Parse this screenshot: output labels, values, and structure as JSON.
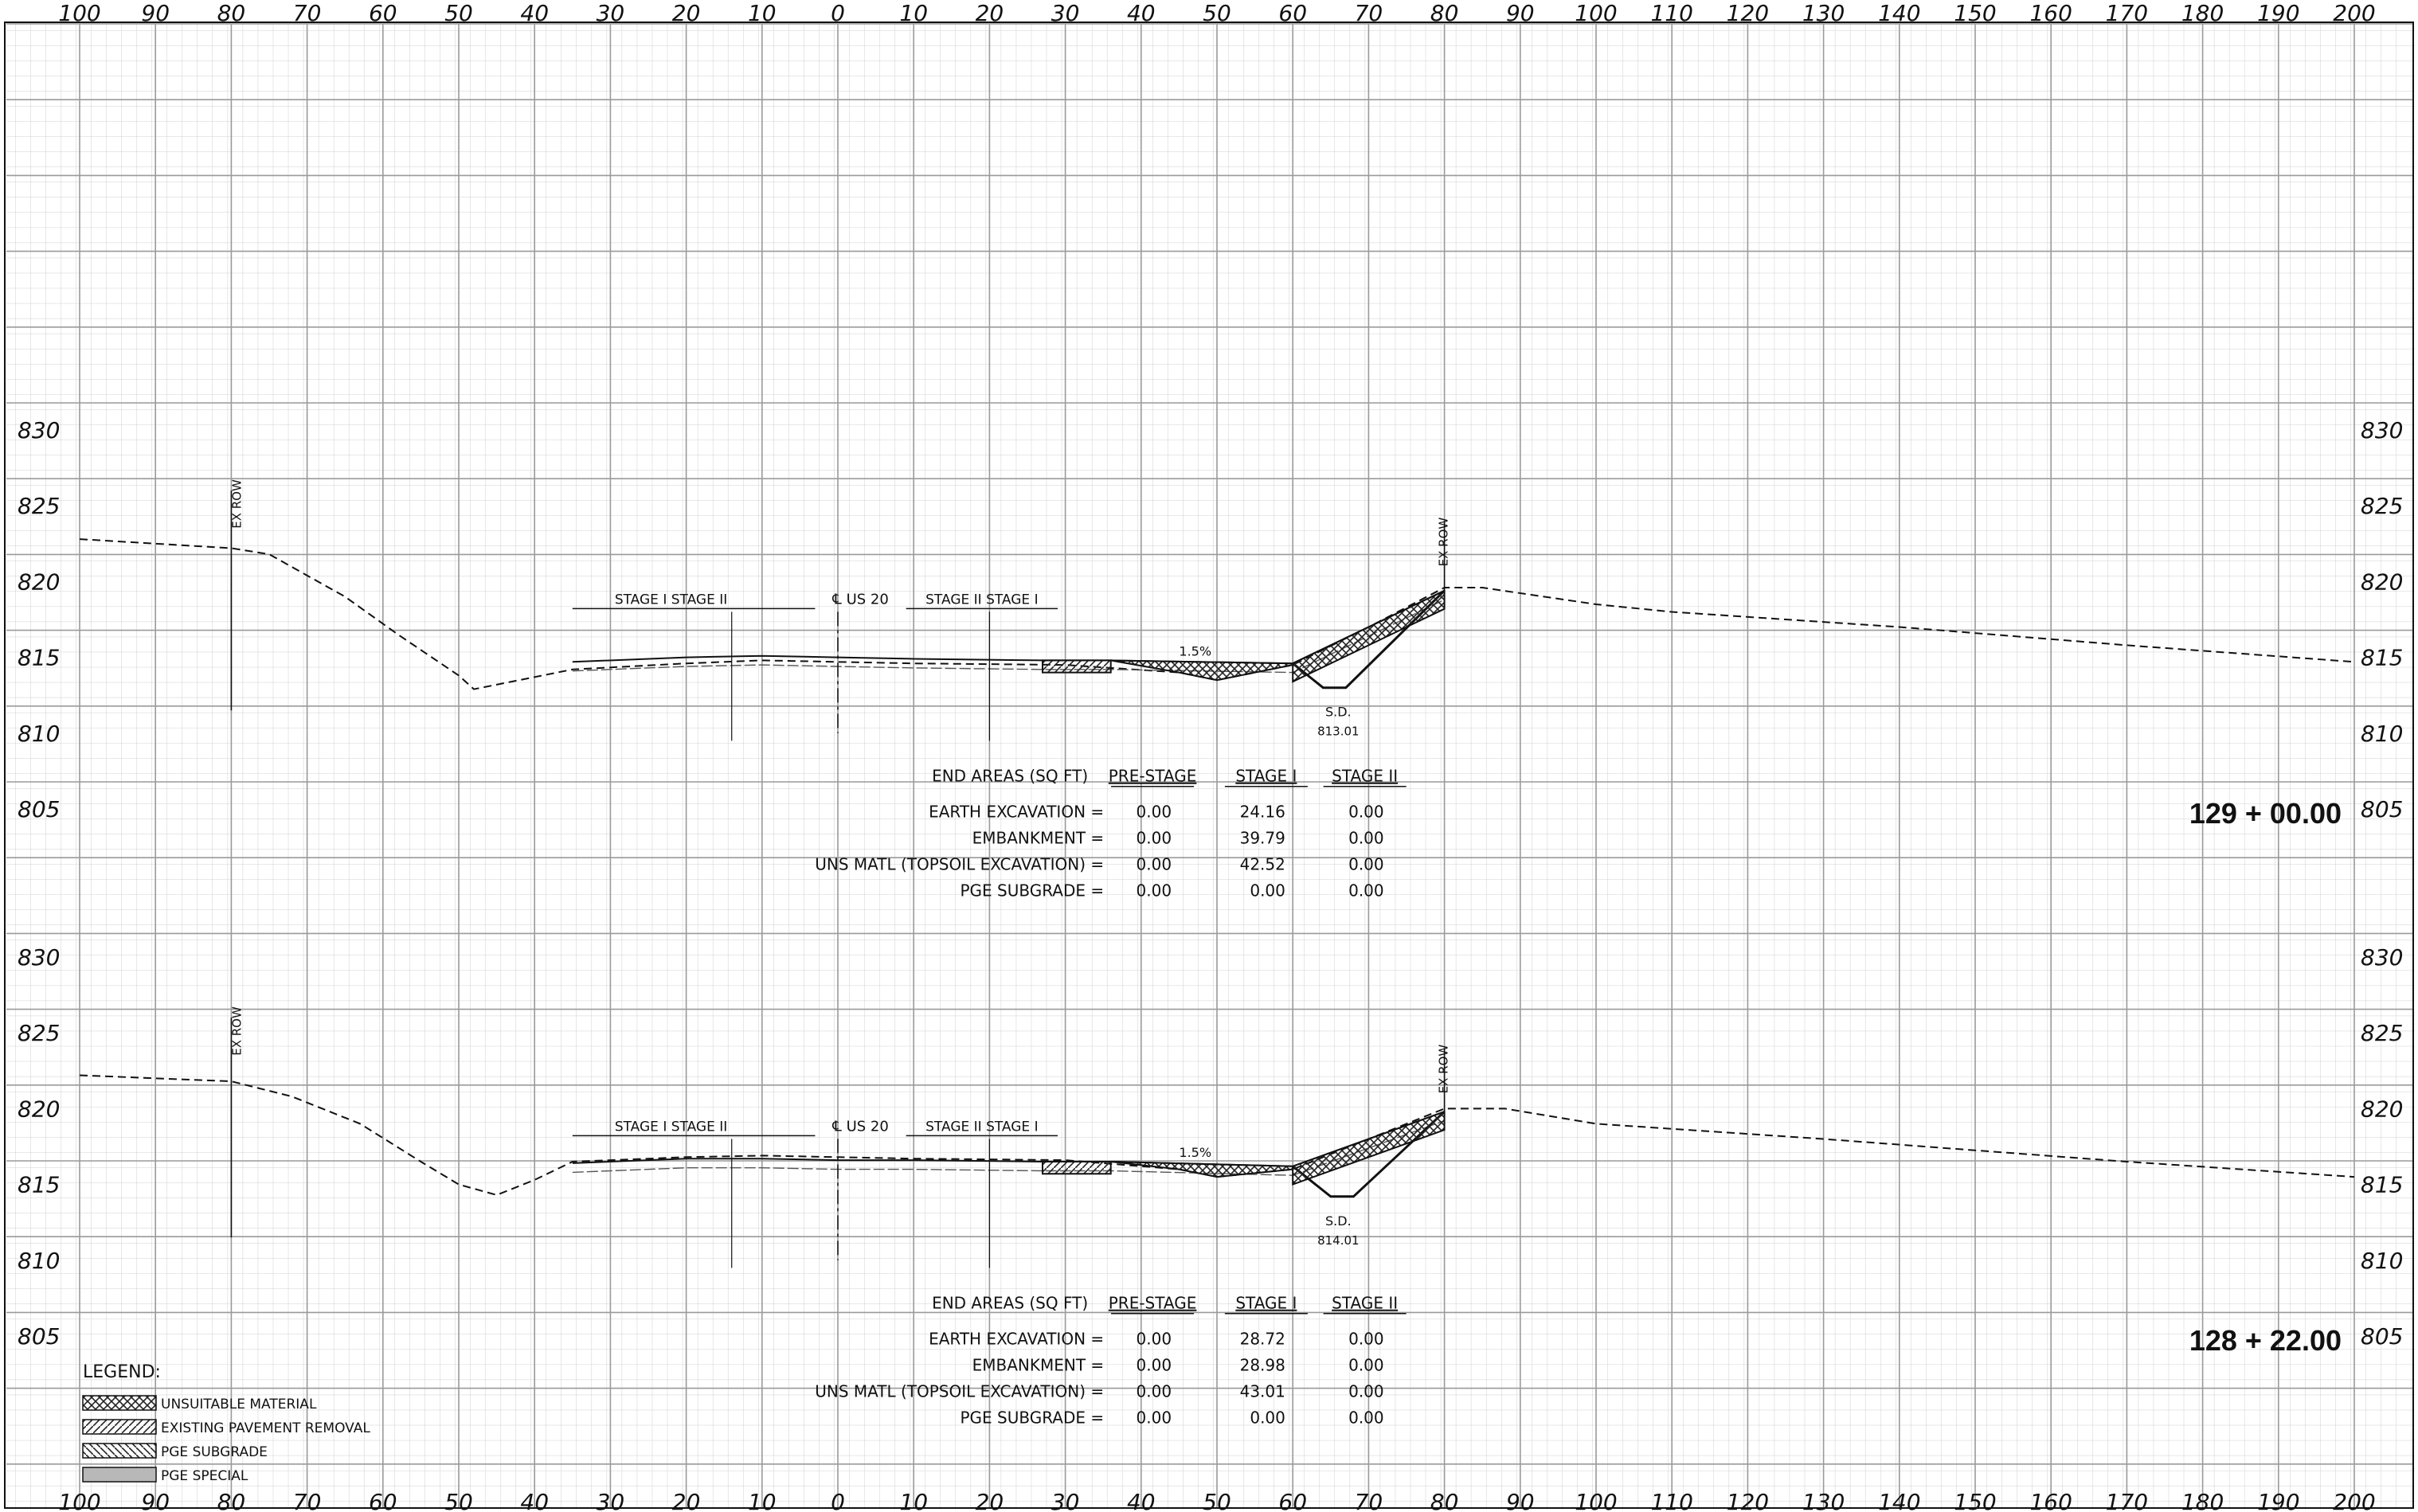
{
  "axis": {
    "offset_labels": [
      "100",
      "90",
      "80",
      "70",
      "60",
      "50",
      "40",
      "30",
      "20",
      "10",
      "0",
      "10",
      "20",
      "30",
      "40",
      "50",
      "60",
      "70",
      "80",
      "90",
      "100",
      "110",
      "120",
      "130",
      "140",
      "150",
      "160",
      "170",
      "180",
      "190",
      "200"
    ],
    "offset_values": [
      -100,
      -90,
      -80,
      -70,
      -60,
      -50,
      -40,
      -30,
      -20,
      -10,
      0,
      10,
      20,
      30,
      40,
      50,
      60,
      70,
      80,
      90,
      100,
      110,
      120,
      130,
      140,
      150,
      160,
      170,
      180,
      190,
      200
    ],
    "elevation_labels": [
      "830",
      "825",
      "820",
      "815",
      "810",
      "805"
    ]
  },
  "sections": [
    {
      "station": "129 + 00.00",
      "labels": {
        "ex_row_left": "EX ROW",
        "ex_row_right": "EX ROW",
        "stage_left": "STAGE I  STAGE II",
        "centerline": "℄ US 20",
        "stage_right": "STAGE II  STAGE I",
        "slope": "1.5%",
        "sd": "S.D.",
        "sd_elev": "813.01"
      },
      "existing_ground": [
        [
          -100,
          822.8
        ],
        [
          -80,
          822.2
        ],
        [
          -75,
          821.8
        ],
        [
          -65,
          819.0
        ],
        [
          -58,
          816.5
        ],
        [
          -50,
          813.8
        ],
        [
          -48,
          812.9
        ],
        [
          -35,
          814.2
        ],
        [
          -20,
          814.6
        ],
        [
          -10,
          814.8
        ],
        [
          0,
          814.7
        ],
        [
          10,
          814.6
        ],
        [
          30,
          814.5
        ],
        [
          45,
          814.0
        ],
        [
          50,
          813.5
        ],
        [
          60,
          814.5
        ],
        [
          70,
          817.0
        ],
        [
          80,
          819.6
        ],
        [
          85,
          819.6
        ],
        [
          100,
          818.5
        ],
        [
          110,
          818.0
        ],
        [
          140,
          817.0
        ],
        [
          170,
          815.8
        ],
        [
          200,
          814.7
        ]
      ],
      "proposed_surface": [
        [
          -35,
          814.7
        ],
        [
          -20,
          815.0
        ],
        [
          -10,
          815.1
        ],
        [
          0,
          815.0
        ],
        [
          10,
          814.9
        ],
        [
          27,
          814.8
        ],
        [
          36,
          814.8
        ],
        [
          60,
          814.6
        ],
        [
          80,
          819.4
        ]
      ],
      "ditch_bottom": [
        [
          60,
          814.6
        ],
        [
          64,
          813.0
        ],
        [
          67,
          813.0
        ],
        [
          80,
          819.4
        ]
      ],
      "end_areas": {
        "header": [
          "END AREAS (SQ FT)",
          "PRE-STAGE",
          "STAGE I",
          "STAGE II"
        ],
        "rows": [
          [
            "EARTH EXCAVATION =",
            "0.00",
            "24.16",
            "0.00"
          ],
          [
            "EMBANKMENT =",
            "0.00",
            "39.79",
            "0.00"
          ],
          [
            "UNS MATL (TOPSOIL EXCAVATION) =",
            "0.00",
            "42.52",
            "0.00"
          ],
          [
            "PGE SUBGRADE =",
            "0.00",
            "0.00",
            "0.00"
          ]
        ]
      }
    },
    {
      "station": "128 + 22.00",
      "labels": {
        "ex_row_left": "EX ROW",
        "ex_row_right": "EX ROW",
        "stage_left": "STAGE I  STAGE II",
        "centerline": "℄ US 20",
        "stage_right": "STAGE II  STAGE I",
        "slope": "1.5%",
        "sd": "S.D.",
        "sd_elev": "814.01"
      },
      "existing_ground": [
        [
          -100,
          822.2
        ],
        [
          -80,
          821.8
        ],
        [
          -72,
          820.8
        ],
        [
          -63,
          819.0
        ],
        [
          -55,
          816.5
        ],
        [
          -50,
          815.0
        ],
        [
          -45,
          814.3
        ],
        [
          -40,
          815.3
        ],
        [
          -35,
          816.5
        ],
        [
          -20,
          816.8
        ],
        [
          -10,
          816.9
        ],
        [
          0,
          816.8
        ],
        [
          10,
          816.7
        ],
        [
          30,
          816.6
        ],
        [
          45,
          816.0
        ],
        [
          50,
          815.5
        ],
        [
          60,
          816.0
        ],
        [
          70,
          818.0
        ],
        [
          80,
          820.0
        ],
        [
          88,
          820.0
        ],
        [
          100,
          819.0
        ],
        [
          130,
          818.0
        ],
        [
          170,
          816.5
        ],
        [
          200,
          815.5
        ]
      ],
      "proposed_surface": [
        [
          -35,
          816.4
        ],
        [
          -20,
          816.7
        ],
        [
          -10,
          816.7
        ],
        [
          0,
          816.6
        ],
        [
          10,
          816.6
        ],
        [
          27,
          816.5
        ],
        [
          36,
          816.5
        ],
        [
          60,
          816.2
        ],
        [
          80,
          819.8
        ]
      ],
      "ditch_bottom": [
        [
          60,
          816.2
        ],
        [
          65,
          814.2
        ],
        [
          68,
          814.2
        ],
        [
          80,
          819.8
        ]
      ],
      "end_areas": {
        "header": [
          "END AREAS (SQ FT)",
          "PRE-STAGE",
          "STAGE I",
          "STAGE II"
        ],
        "rows": [
          [
            "EARTH EXCAVATION =",
            "0.00",
            "28.72",
            "0.00"
          ],
          [
            "EMBANKMENT =",
            "0.00",
            "28.98",
            "0.00"
          ],
          [
            "UNS MATL (TOPSOIL EXCAVATION) =",
            "0.00",
            "43.01",
            "0.00"
          ],
          [
            "PGE SUBGRADE =",
            "0.00",
            "0.00",
            "0.00"
          ]
        ]
      }
    }
  ],
  "legend": {
    "title": "LEGEND:",
    "items": [
      {
        "label": "UNSUITABLE MATERIAL",
        "pattern": "crosshatch"
      },
      {
        "label": "EXISTING PAVEMENT REMOVAL",
        "pattern": "diagonal"
      },
      {
        "label": "PGE SUBGRADE",
        "pattern": "backdiagonal"
      },
      {
        "label": "PGE SPECIAL",
        "pattern": "gray"
      }
    ]
  }
}
